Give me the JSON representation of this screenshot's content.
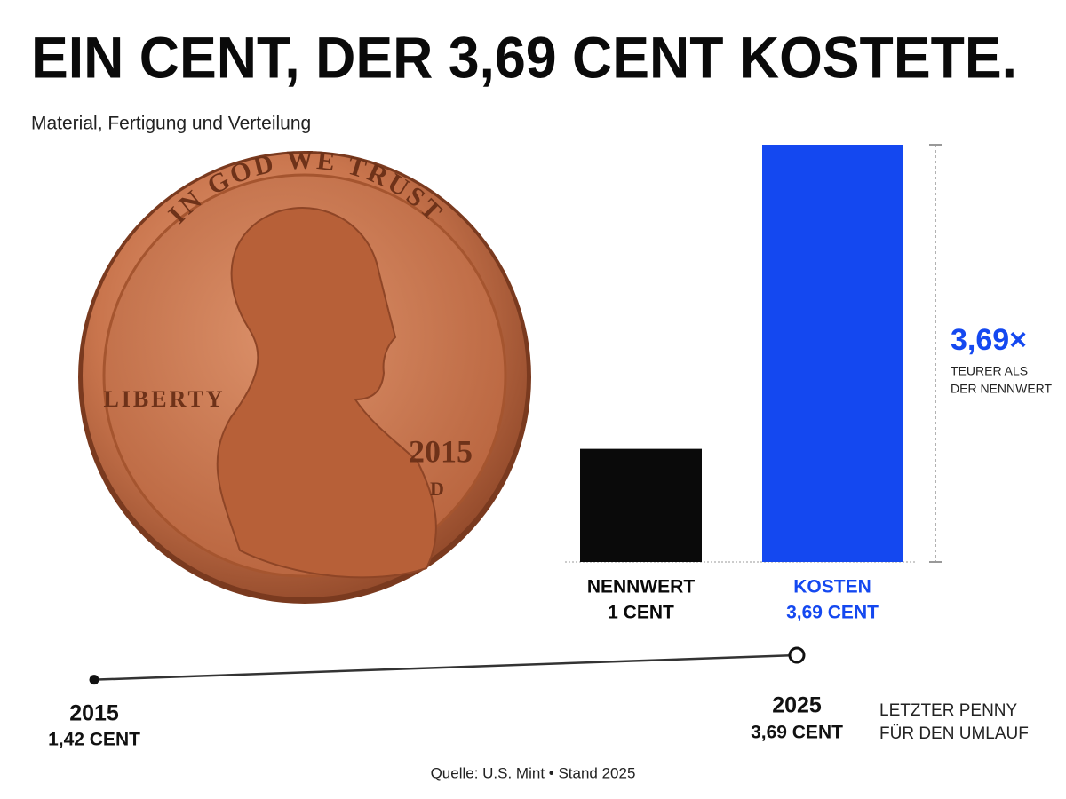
{
  "title": "EIN CENT, DER 3,69 CENT KOSTETE.",
  "subtitle": "Material, Fertigung und Verteilung",
  "coin": {
    "motto": "IN GOD WE TRUST",
    "liberty": "LIBERTY",
    "year": "2015",
    "mint": "D"
  },
  "source": "Quelle: U.S. Mint • Stand 2025",
  "chart_data": [
    {
      "type": "bar",
      "categories": [
        "NENNWERT",
        "KOSTEN"
      ],
      "values": [
        1,
        3.69
      ],
      "value_labels": [
        "1 CENT",
        "3,69 CENT"
      ],
      "colors": [
        "#0a0a0a",
        "#1448f0"
      ],
      "ylim": [
        0,
        3.69
      ],
      "annotation": {
        "value": 3.69,
        "label": "3,69×",
        "text": [
          "TEURER ALS",
          "DER NENNWERT"
        ]
      }
    },
    {
      "type": "line",
      "x": [
        2015,
        2025
      ],
      "values": [
        1.42,
        3.69
      ],
      "value_labels": [
        "1,42 CENT",
        "3,69 CENT"
      ],
      "color": "#333333",
      "xlim": [
        2015,
        2025
      ],
      "ylim": [
        0,
        3.69
      ],
      "annotation": [
        "LETZTER PENNY",
        "FÜR DEN UMLAUF"
      ]
    }
  ]
}
